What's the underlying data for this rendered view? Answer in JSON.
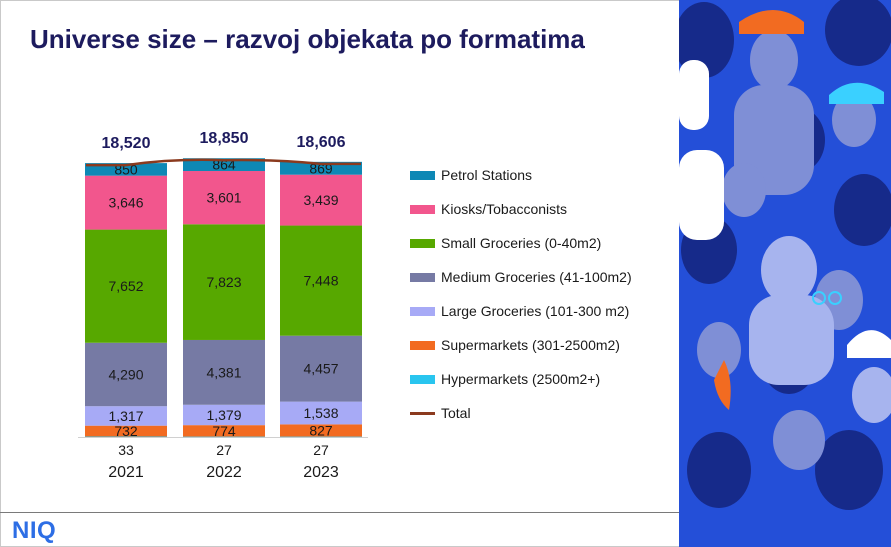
{
  "title": "Universe size – razvoj objekata po formatima",
  "brand": {
    "logo": "NIQ",
    "logo_color": "#2d6ee5"
  },
  "chart_data": {
    "type": "bar",
    "stacked": true,
    "categories": [
      "2021",
      "2022",
      "2023"
    ],
    "category_sublabels": [
      "33",
      "27",
      "27"
    ],
    "series": [
      {
        "name": "Hypermarkets (2500m2+)",
        "color": "#29c5ef",
        "values": [
          33,
          27,
          27
        ],
        "labeled": false
      },
      {
        "name": "Supermarkets (301-2500m2)",
        "color": "#f26b21",
        "values": [
          732,
          774,
          827
        ],
        "labeled": true
      },
      {
        "name": "Large Groceries (101-300 m2)",
        "color": "#a7aaf6",
        "values": [
          1317,
          1379,
          1538
        ],
        "labeled": true
      },
      {
        "name": "Medium Groceries (41-100m2)",
        "color": "#767aa4",
        "values": [
          4290,
          4381,
          4457
        ],
        "labeled": true
      },
      {
        "name": "Small Groceries (0-40m2)",
        "color": "#57a800",
        "values": [
          7652,
          7823,
          7448
        ],
        "labeled": true
      },
      {
        "name": "Kiosks/Tobacconists",
        "color": "#f2568d",
        "values": [
          3646,
          3601,
          3439
        ],
        "labeled": true
      },
      {
        "name": "Petrol Stations",
        "color": "#0e88b5",
        "values": [
          850,
          864,
          869
        ],
        "labeled": true
      }
    ],
    "total": {
      "name": "Total",
      "color": "#8b3a1e",
      "values": [
        18520,
        18850,
        18606
      ]
    },
    "ylim": [
      0,
      19000
    ],
    "legend_position": "right",
    "legend_order": [
      "Petrol Stations",
      "Kiosks/Tobacconists",
      "Small Groceries (0-40m2)",
      "Medium Groceries (41-100m2)",
      "Large Groceries (101-300 m2)",
      "Supermarkets (301-2500m2)",
      "Hypermarkets (2500m2+)",
      "Total"
    ]
  },
  "photo": {
    "description_icon": "crowd-illustration",
    "background_color": "#1f4fd1"
  }
}
